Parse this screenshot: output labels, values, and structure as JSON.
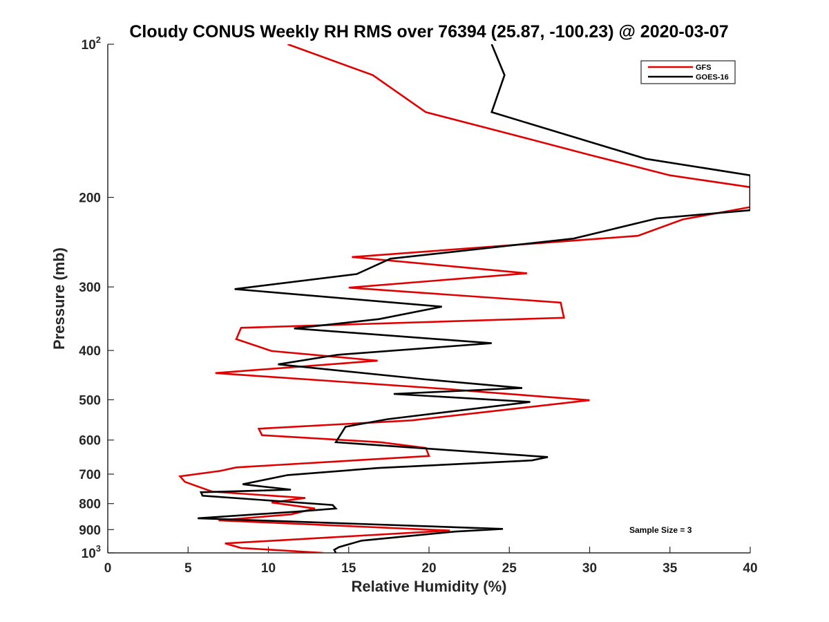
{
  "chart_data": {
    "type": "line",
    "title": "Cloudy CONUS Weekly RH RMS over 76394 (25.87, -100.23) @ 2020-03-07",
    "xlabel": "Relative Humidity (%)",
    "ylabel": "Pressure (mb)",
    "xlim": [
      0,
      40
    ],
    "ylim": [
      100,
      1000
    ],
    "y_scale": "log",
    "y_reversed": true,
    "xticks": [
      0,
      5,
      10,
      15,
      20,
      25,
      30,
      35,
      40
    ],
    "xtick_labels": [
      "0",
      "5",
      "10",
      "15",
      "20",
      "25",
      "30",
      "35",
      "40"
    ],
    "yticks": [
      {
        "value": 100,
        "label": "10",
        "exp": "2"
      },
      {
        "value": 200,
        "label": "200"
      },
      {
        "value": 300,
        "label": "300"
      },
      {
        "value": 400,
        "label": "400"
      },
      {
        "value": 500,
        "label": "500"
      },
      {
        "value": 600,
        "label": "600"
      },
      {
        "value": 700,
        "label": "700"
      },
      {
        "value": 800,
        "label": "800"
      },
      {
        "value": 900,
        "label": "900"
      },
      {
        "value": 1000,
        "label": "10",
        "exp": "3"
      }
    ],
    "legend_position": "top-right",
    "annotation": "Sample Size = 3",
    "series": [
      {
        "name": "GFS",
        "color": "#e00000",
        "points": [
          [
            11.2,
            100
          ],
          [
            16.5,
            115
          ],
          [
            19.8,
            136
          ],
          [
            25,
            150
          ],
          [
            30,
            165
          ],
          [
            35,
            181
          ],
          [
            40,
            191
          ],
          [
            40,
            209
          ],
          [
            35.8,
            221
          ],
          [
            33,
            238
          ],
          [
            15.2,
            262
          ],
          [
            26.1,
            282
          ],
          [
            15,
            301
          ],
          [
            28.2,
            322
          ],
          [
            28.4,
            345
          ],
          [
            8.3,
            361
          ],
          [
            8,
            380
          ],
          [
            10.2,
            401
          ],
          [
            16.8,
            419
          ],
          [
            6.7,
            443
          ],
          [
            21,
            476
          ],
          [
            23.5,
            483
          ],
          [
            30,
            501
          ],
          [
            18.9,
            549
          ],
          [
            9.4,
            570
          ],
          [
            9.6,
            587
          ],
          [
            17,
            606
          ],
          [
            19.8,
            622
          ],
          [
            20,
            645
          ],
          [
            8,
            679
          ],
          [
            7,
            690
          ],
          [
            4.5,
            707
          ],
          [
            4.8,
            725
          ],
          [
            6.5,
            758
          ],
          [
            12.3,
            780
          ],
          [
            10.2,
            796
          ],
          [
            12.9,
            818
          ],
          [
            11.4,
            840
          ],
          [
            6.9,
            863
          ],
          [
            21.3,
            904
          ],
          [
            7.3,
            958
          ],
          [
            8.3,
            978
          ],
          [
            13.4,
            1000
          ]
        ]
      },
      {
        "name": "GOES-16",
        "color": "#000000",
        "points": [
          [
            23.9,
            100
          ],
          [
            24.7,
            115
          ],
          [
            23.9,
            136
          ],
          [
            33.5,
            168
          ],
          [
            40,
            181
          ],
          [
            40,
            212
          ],
          [
            34.2,
            220
          ],
          [
            29,
            241
          ],
          [
            17.6,
            264
          ],
          [
            15.5,
            283
          ],
          [
            7.9,
            303
          ],
          [
            20.8,
            328
          ],
          [
            16.9,
            347
          ],
          [
            11.6,
            362
          ],
          [
            23.9,
            387
          ],
          [
            14.3,
            408
          ],
          [
            10.6,
            426
          ],
          [
            19.8,
            456
          ],
          [
            25.8,
            474
          ],
          [
            17.8,
            487
          ],
          [
            26.3,
            505
          ],
          [
            17.4,
            546
          ],
          [
            14.8,
            565
          ],
          [
            14.2,
            606
          ],
          [
            27.4,
            648
          ],
          [
            26.4,
            658
          ],
          [
            16.8,
            681
          ],
          [
            11.2,
            703
          ],
          [
            8.4,
            733
          ],
          [
            11.4,
            751
          ],
          [
            5.8,
            760
          ],
          [
            5.9,
            772
          ],
          [
            14,
            805
          ],
          [
            14.2,
            818
          ],
          [
            11.7,
            830
          ],
          [
            5.6,
            855
          ],
          [
            24.6,
            897
          ],
          [
            21.6,
            908
          ],
          [
            15.8,
            946
          ],
          [
            14.4,
            974
          ],
          [
            14.1,
            986
          ],
          [
            14.2,
            1000
          ]
        ]
      }
    ]
  }
}
